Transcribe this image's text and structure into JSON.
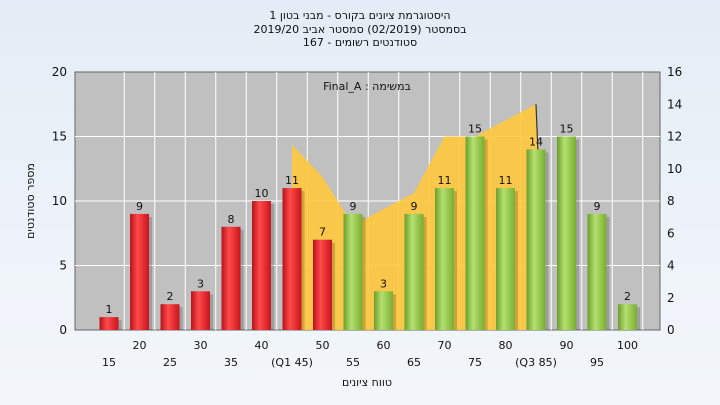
{
  "header": {
    "title": "היסטוגרמת ציונים בקורס - מבני בטון 1",
    "subtitle": "בסמסטר  (02/2019)  סמסטר אביב 2019/20",
    "registered": "סטודנטים רשומים - 167"
  },
  "chart_data": {
    "type": "bar",
    "title": "היסטוגרמת ציונים בקורס - מבני בטון 1",
    "subtitle": "בסמסטר  (02/2019)  סמסטר אביב 2019/20",
    "annotation": "במשימה : Final_A",
    "xlabel": "טווח ציונים",
    "ylabel": "מספר סטודנטים",
    "ylim": [
      0,
      20
    ],
    "y_ticks": [
      0,
      5,
      10,
      15,
      20
    ],
    "y2lim": [
      0,
      16
    ],
    "y2_ticks": [
      0,
      2,
      4,
      6,
      8,
      10,
      12,
      14,
      16
    ],
    "grid": true,
    "x_tick_labels": [
      "15",
      "20",
      "25",
      "30",
      "35",
      "40",
      "(Q1 45)",
      "50",
      "55",
      "60",
      "65",
      "70",
      "75",
      "80",
      "(Q3 85)",
      "90",
      "95",
      "100"
    ],
    "categories": [
      "15",
      "20",
      "25",
      "30",
      "35",
      "40",
      "45",
      "50",
      "55",
      "60",
      "65",
      "70",
      "75",
      "80",
      "85",
      "90",
      "95",
      "100"
    ],
    "values": [
      1,
      9,
      2,
      3,
      8,
      10,
      11,
      7,
      9,
      3,
      9,
      11,
      15,
      11,
      14,
      15,
      9,
      2
    ],
    "bar_colors": [
      "red",
      "red",
      "red",
      "red",
      "red",
      "red",
      "red",
      "red",
      "green",
      "green",
      "green",
      "green",
      "green",
      "green",
      "green",
      "green",
      "green",
      "green"
    ],
    "quartile_band": {
      "from_category": "45",
      "to_category": "85",
      "points_y2": [
        [
          45,
          11.5
        ],
        [
          50,
          9.5
        ],
        [
          55,
          6.5
        ],
        [
          60,
          7.5
        ],
        [
          65,
          8.5
        ],
        [
          70,
          12
        ],
        [
          75,
          12
        ],
        [
          80,
          13
        ],
        [
          85,
          14
        ]
      ]
    },
    "colors": {
      "red": "#e8262a",
      "green": "#8cc63e",
      "band": "#ffc83c",
      "plot_bg": "#c0c0c0"
    }
  }
}
